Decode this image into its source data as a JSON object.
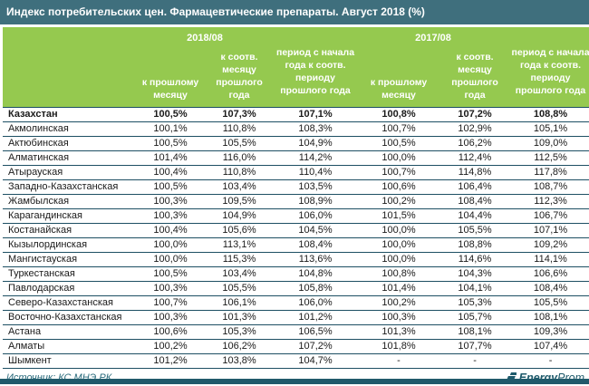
{
  "title": "Индекс потребительских цен. Фармацевтические препараты. Август 2018 (%)",
  "source_label": "Источник: КС МНЭ РК",
  "logo": {
    "bold_part": "Energy",
    "light_part": "Prom",
    "icon": "energyprom-bars-icon"
  },
  "colors": {
    "titlebar": "#3F6F7D",
    "header_green": "#95C94F",
    "row_line": "#1D4F63",
    "footer_text": "#2A6B7C",
    "logo": "#1E5A6B",
    "bottom_bar": "#215A6B",
    "body_text": "#1a1a1a"
  },
  "chart_data": {
    "type": "table",
    "title": "Индекс потребительских цен. Фармацевтические препараты. Август 2018 (%)",
    "group_headers": [
      "2018/08",
      "2017/08"
    ],
    "col_headers": [
      "к прошлому месяцу",
      "к соотв. месяцу прошлого года",
      "период с начала года к соотв. периоду прошлого года",
      "к прошлому месяцу",
      "к соотв. месяцу прошлого года",
      "период с начала года к соотв. периоду прошлого года"
    ],
    "rows": [
      {
        "name": "Казахстан",
        "bold": true,
        "values": [
          "100,5%",
          "107,3%",
          "107,1%",
          "100,8%",
          "107,2%",
          "108,8%"
        ]
      },
      {
        "name": "Акмолинская",
        "bold": false,
        "values": [
          "100,1%",
          "110,8%",
          "108,3%",
          "100,7%",
          "102,9%",
          "105,1%"
        ]
      },
      {
        "name": "Актюбинская",
        "bold": false,
        "values": [
          "100,5%",
          "105,5%",
          "104,9%",
          "100,5%",
          "106,2%",
          "109,0%"
        ]
      },
      {
        "name": "Алматинская",
        "bold": false,
        "values": [
          "101,4%",
          "116,0%",
          "114,2%",
          "100,0%",
          "112,4%",
          "112,5%"
        ]
      },
      {
        "name": "Атырауская",
        "bold": false,
        "values": [
          "100,4%",
          "110,8%",
          "110,4%",
          "100,7%",
          "114,8%",
          "117,8%"
        ]
      },
      {
        "name": "Западно-Казахстанская",
        "bold": false,
        "values": [
          "100,5%",
          "103,4%",
          "103,5%",
          "100,6%",
          "106,4%",
          "108,7%"
        ]
      },
      {
        "name": "Жамбылская",
        "bold": false,
        "values": [
          "100,3%",
          "109,5%",
          "108,9%",
          "100,2%",
          "108,4%",
          "112,3%"
        ]
      },
      {
        "name": "Карагандинская",
        "bold": false,
        "values": [
          "100,3%",
          "104,9%",
          "106,0%",
          "101,5%",
          "104,4%",
          "106,7%"
        ]
      },
      {
        "name": "Костанайская",
        "bold": false,
        "values": [
          "100,4%",
          "105,6%",
          "104,5%",
          "100,0%",
          "105,5%",
          "107,1%"
        ]
      },
      {
        "name": "Кызылординская",
        "bold": false,
        "values": [
          "100,0%",
          "113,1%",
          "108,4%",
          "100,0%",
          "108,8%",
          "109,2%"
        ]
      },
      {
        "name": "Мангистауская",
        "bold": false,
        "values": [
          "100,0%",
          "115,3%",
          "113,6%",
          "100,0%",
          "114,6%",
          "114,1%"
        ]
      },
      {
        "name": "Туркестанская",
        "bold": false,
        "values": [
          "100,5%",
          "103,4%",
          "104,8%",
          "100,8%",
          "104,3%",
          "106,6%"
        ]
      },
      {
        "name": "Павлодарская",
        "bold": false,
        "values": [
          "100,3%",
          "105,5%",
          "105,8%",
          "101,4%",
          "104,1%",
          "108,4%"
        ]
      },
      {
        "name": "Северо-Казахстанская",
        "bold": false,
        "values": [
          "100,7%",
          "106,1%",
          "106,0%",
          "100,2%",
          "105,3%",
          "105,5%"
        ]
      },
      {
        "name": "Восточно-Казахстанская",
        "bold": false,
        "values": [
          "100,3%",
          "101,3%",
          "101,2%",
          "100,3%",
          "105,7%",
          "108,1%"
        ]
      },
      {
        "name": "Астана",
        "bold": false,
        "values": [
          "100,6%",
          "105,3%",
          "106,5%",
          "101,3%",
          "108,1%",
          "109,3%"
        ]
      },
      {
        "name": "Алматы",
        "bold": false,
        "values": [
          "100,2%",
          "106,2%",
          "107,2%",
          "101,8%",
          "107,7%",
          "107,4%"
        ]
      },
      {
        "name": "Шымкент",
        "bold": false,
        "values": [
          "101,2%",
          "103,8%",
          "104,7%",
          "-",
          "-",
          "-"
        ]
      }
    ]
  }
}
